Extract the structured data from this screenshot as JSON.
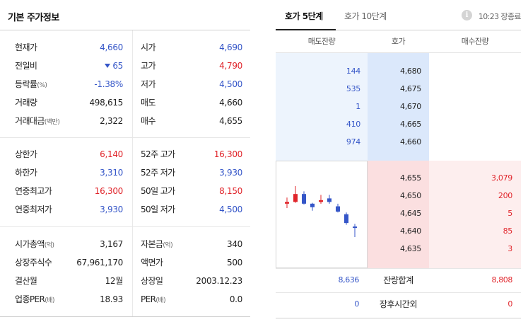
{
  "basic": {
    "title": "기본 주가정보",
    "groups": [
      {
        "rows": [
          {
            "l1": "현재가",
            "l1_sub": "",
            "v1": "4,660",
            "v1_color": "blue",
            "v1_arrow": false,
            "l2": "시가",
            "l2_sub": "",
            "v2": "4,690",
            "v2_color": "blue"
          },
          {
            "l1": "전일비",
            "l1_sub": "",
            "v1": "65",
            "v1_color": "blue",
            "v1_arrow": true,
            "l2": "고가",
            "l2_sub": "",
            "v2": "4,790",
            "v2_color": "red"
          },
          {
            "l1": "등락률",
            "l1_sub": "(%)",
            "v1": "-1.38%",
            "v1_color": "blue",
            "v1_arrow": false,
            "l2": "저가",
            "l2_sub": "",
            "v2": "4,500",
            "v2_color": "blue"
          },
          {
            "l1": "거래량",
            "l1_sub": "",
            "v1": "498,615",
            "v1_color": "dark",
            "v1_arrow": false,
            "l2": "매도",
            "l2_sub": "",
            "v2": "4,660",
            "v2_color": "dark"
          },
          {
            "l1": "거래대금",
            "l1_sub": "(백만)",
            "v1": "2,322",
            "v1_color": "dark",
            "v1_arrow": false,
            "l2": "매수",
            "l2_sub": "",
            "v2": "4,655",
            "v2_color": "dark"
          }
        ]
      },
      {
        "rows": [
          {
            "l1": "상한가",
            "l1_sub": "",
            "v1": "6,140",
            "v1_color": "red",
            "v1_arrow": false,
            "l2": "52주 고가",
            "l2_sub": "",
            "v2": "16,300",
            "v2_color": "red"
          },
          {
            "l1": "하한가",
            "l1_sub": "",
            "v1": "3,310",
            "v1_color": "blue",
            "v1_arrow": false,
            "l2": "52주 저가",
            "l2_sub": "",
            "v2": "3,930",
            "v2_color": "blue"
          },
          {
            "l1": "연중최고가",
            "l1_sub": "",
            "v1": "16,300",
            "v1_color": "red",
            "v1_arrow": false,
            "l2": "50일 고가",
            "l2_sub": "",
            "v2": "8,150",
            "v2_color": "red"
          },
          {
            "l1": "연중최저가",
            "l1_sub": "",
            "v1": "3,930",
            "v1_color": "blue",
            "v1_arrow": false,
            "l2": "50일 저가",
            "l2_sub": "",
            "v2": "4,500",
            "v2_color": "blue"
          }
        ]
      },
      {
        "rows": [
          {
            "l1": "시가총액",
            "l1_sub": "(억)",
            "v1": "3,167",
            "v1_color": "dark",
            "v1_arrow": false,
            "l2": "자본금",
            "l2_sub": "(억)",
            "v2": "340",
            "v2_color": "dark"
          },
          {
            "l1": "상장주식수",
            "l1_sub": "",
            "v1": "67,961,170",
            "v1_color": "dark",
            "v1_arrow": false,
            "l2": "액면가",
            "l2_sub": "",
            "v2": "500",
            "v2_color": "dark"
          },
          {
            "l1": "결산월",
            "l1_sub": "",
            "v1": "12월",
            "v1_color": "dark",
            "v1_arrow": false,
            "l2": "상장일",
            "l2_sub": "",
            "v2": "2003.12.23",
            "v2_color": "dark"
          },
          {
            "l1": "업종PER",
            "l1_sub": "(배)",
            "v1": "18.93",
            "v1_color": "dark",
            "v1_arrow": false,
            "l2": "PER",
            "l2_sub": "(배)",
            "v2": "0.0",
            "v2_color": "dark"
          }
        ]
      }
    ]
  },
  "orderbook": {
    "tabs": [
      {
        "label": "호가 5단계",
        "active": true
      },
      {
        "label": "호가 10단계",
        "active": false
      }
    ],
    "info_icon": "info-icon",
    "info_glyph": "i",
    "status": "10:23 장종료",
    "headers": {
      "ask": "매도잔량",
      "price": "호가",
      "bid": "매수잔량"
    },
    "asks": [
      {
        "qty": "144",
        "price": "4,680"
      },
      {
        "qty": "535",
        "price": "4,675"
      },
      {
        "qty": "1",
        "price": "4,670"
      },
      {
        "qty": "410",
        "price": "4,665"
      },
      {
        "qty": "974",
        "price": "4,660"
      }
    ],
    "bids": [
      {
        "price": "4,655",
        "qty": "3,079"
      },
      {
        "price": "4,650",
        "qty": "200"
      },
      {
        "price": "4,645",
        "qty": "5"
      },
      {
        "price": "4,640",
        "qty": "85"
      },
      {
        "price": "4,635",
        "qty": "3"
      }
    ],
    "totals": {
      "ask": "8,636",
      "label": "잔량합계",
      "bid": "8,808"
    },
    "after_hours": {
      "ask": "0",
      "label": "장후시간외",
      "bid": "0"
    }
  },
  "colors": {
    "up": "#e0242a",
    "down": "#3556c8"
  },
  "mini_chart": {
    "candles": [
      {
        "dir": "up",
        "open": 4690,
        "close": 4700,
        "high": 4725,
        "low": 4665
      },
      {
        "dir": "up",
        "open": 4700,
        "close": 4745,
        "high": 4790,
        "low": 4695
      },
      {
        "dir": "down",
        "open": 4745,
        "close": 4690,
        "high": 4760,
        "low": 4685
      },
      {
        "dir": "down",
        "open": 4690,
        "close": 4670,
        "high": 4695,
        "low": 4650
      },
      {
        "dir": "up",
        "open": 4700,
        "close": 4710,
        "high": 4740,
        "low": 4690
      },
      {
        "dir": "down",
        "open": 4720,
        "close": 4700,
        "high": 4740,
        "low": 4690
      },
      {
        "dir": "down",
        "open": 4675,
        "close": 4645,
        "high": 4690,
        "low": 4640
      },
      {
        "dir": "down",
        "open": 4630,
        "close": 4580,
        "high": 4640,
        "low": 4570
      },
      {
        "dir": "down",
        "open": 4560,
        "close": 4555,
        "high": 4575,
        "low": 4500
      }
    ],
    "ylim": [
      4480,
      4810
    ]
  }
}
